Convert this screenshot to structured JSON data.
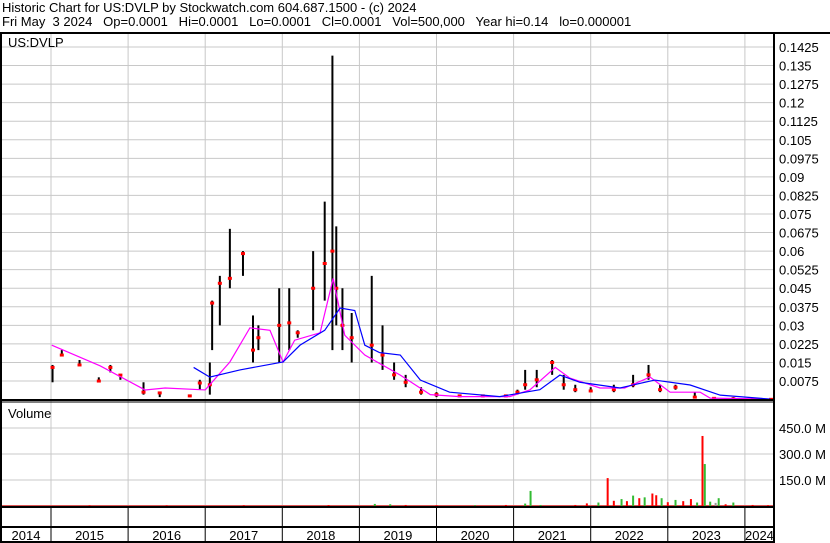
{
  "header": {
    "line1": "Historic Chart for US:DVLP by Stockwatch.com 604.687.1500 - (c) 2024",
    "line2": "Fri May  3 2024   Op=0.0001   Hi=0.0001   Lo=0.0001   Cl=0.0001   Vol=500,000   Year hi=0.14   lo=0.000001"
  },
  "chart_data": [
    {
      "type": "line",
      "title": "US:DVLP",
      "x_unit": "year",
      "xlim": [
        2013.4,
        2024.37
      ],
      "ylim": [
        0,
        0.1485
      ],
      "grid": true,
      "y_ticks": [
        "0.1425",
        "0.135",
        "0.1275",
        "0.12",
        "0.1125",
        "0.105",
        "0.0975",
        "0.09",
        "0.0825",
        "0.075",
        "0.0675",
        "0.06",
        "0.0525",
        "0.045",
        "0.0375",
        "0.03",
        "0.0225",
        "0.015",
        "0.0075"
      ],
      "colors": {
        "bar": "#000000",
        "close": "#ff0000",
        "ma_short": "#ff00ff",
        "ma_long": "#0000ff"
      },
      "bars_low_high_close": [
        [
          2013.45,
          0.026,
          0.03,
          0.026
        ],
        [
          2013.55,
          0.026,
          0.028,
          0.026
        ],
        [
          2013.7,
          0.025,
          0.029,
          0.025
        ],
        [
          2013.8,
          0.011,
          0.015,
          0.014
        ],
        [
          2014.0,
          0.006,
          0.014,
          0.007
        ],
        [
          2015.02,
          0.007,
          0.014,
          0.013
        ],
        [
          2015.14,
          0.018,
          0.02,
          0.018
        ],
        [
          2015.37,
          0.014,
          0.016,
          0.014
        ],
        [
          2015.62,
          0.007,
          0.009,
          0.0075
        ],
        [
          2015.77,
          0.011,
          0.014,
          0.013
        ],
        [
          2015.9,
          0.008,
          0.01,
          0.0099
        ],
        [
          2016.2,
          0.002,
          0.007,
          0.003
        ],
        [
          2016.41,
          0.001,
          0.003,
          0.0027
        ],
        [
          2016.8,
          0.001,
          0.002,
          0.0015
        ],
        [
          2016.93,
          0.004,
          0.008,
          0.0067
        ],
        [
          2017.06,
          0.002,
          0.015,
          0.006
        ],
        [
          2017.09,
          0.02,
          0.04,
          0.039
        ],
        [
          2017.19,
          0.03,
          0.05,
          0.047
        ],
        [
          2017.32,
          0.045,
          0.069,
          0.049
        ],
        [
          2017.49,
          0.05,
          0.06,
          0.059
        ],
        [
          2017.62,
          0.015,
          0.034,
          0.02
        ],
        [
          2017.69,
          0.02,
          0.03,
          0.025
        ],
        [
          2017.96,
          0.015,
          0.045,
          0.03
        ],
        [
          2018.09,
          0.02,
          0.045,
          0.031
        ],
        [
          2018.2,
          0.025,
          0.028,
          0.027
        ],
        [
          2018.4,
          0.028,
          0.06,
          0.045
        ],
        [
          2018.55,
          0.04,
          0.08,
          0.055
        ],
        [
          2018.65,
          0.02,
          0.139,
          0.06
        ],
        [
          2018.7,
          0.03,
          0.07,
          0.045
        ],
        [
          2018.78,
          0.02,
          0.045,
          0.03
        ],
        [
          2018.9,
          0.015,
          0.035,
          0.025
        ],
        [
          2019.16,
          0.015,
          0.05,
          0.022
        ],
        [
          2019.3,
          0.012,
          0.03,
          0.018
        ],
        [
          2019.45,
          0.008,
          0.015,
          0.01
        ],
        [
          2019.6,
          0.005,
          0.01,
          0.007
        ],
        [
          2019.8,
          0.002,
          0.005,
          0.003
        ],
        [
          2020.0,
          0.001,
          0.003,
          0.002
        ],
        [
          2020.3,
          0.001,
          0.002,
          0.0015
        ],
        [
          2020.6,
          0.001,
          0.002,
          0.0015
        ],
        [
          2020.9,
          0.001,
          0.002,
          0.0015
        ],
        [
          2021.05,
          0.002,
          0.004,
          0.003
        ],
        [
          2021.15,
          0.004,
          0.012,
          0.006
        ],
        [
          2021.3,
          0.005,
          0.012,
          0.008
        ],
        [
          2021.5,
          0.01,
          0.016,
          0.015
        ],
        [
          2021.65,
          0.004,
          0.01,
          0.006
        ],
        [
          2021.8,
          0.003,
          0.006,
          0.004
        ],
        [
          2022.0,
          0.003,
          0.005,
          0.0035
        ],
        [
          2022.3,
          0.003,
          0.006,
          0.004
        ],
        [
          2022.55,
          0.005,
          0.01,
          0.006
        ],
        [
          2022.75,
          0.008,
          0.014,
          0.01
        ],
        [
          2022.9,
          0.003,
          0.006,
          0.004
        ],
        [
          2023.1,
          0.004,
          0.006,
          0.005
        ],
        [
          2023.35,
          0.0005,
          0.003,
          0.001
        ],
        [
          2023.6,
          0.0003,
          0.001,
          0.0005
        ],
        [
          2023.85,
          0.0002,
          0.001,
          0.0003
        ],
        [
          2024.1,
          0.0001,
          0.0004,
          0.0001
        ],
        [
          2024.34,
          0.0001,
          0.0001,
          0.0001
        ]
      ],
      "ma_short": [
        [
          2015.01,
          0.022
        ],
        [
          2015.64,
          0.0136
        ],
        [
          2016.22,
          0.0039
        ],
        [
          2016.48,
          0.0047
        ],
        [
          2017.0,
          0.0039
        ],
        [
          2017.32,
          0.0152
        ],
        [
          2017.58,
          0.029
        ],
        [
          2017.84,
          0.028
        ],
        [
          2018.01,
          0.0152
        ],
        [
          2018.16,
          0.024
        ],
        [
          2018.49,
          0.027
        ],
        [
          2018.66,
          0.049
        ],
        [
          2018.81,
          0.026
        ],
        [
          2019.07,
          0.018
        ],
        [
          2019.53,
          0.0099
        ],
        [
          2019.92,
          0.002
        ],
        [
          2020.3,
          0.0012
        ],
        [
          2020.95,
          0.0012
        ],
        [
          2021.21,
          0.0039
        ],
        [
          2021.54,
          0.013
        ],
        [
          2021.73,
          0.0087
        ],
        [
          2022.12,
          0.0047
        ],
        [
          2022.44,
          0.0047
        ],
        [
          2022.77,
          0.0091
        ],
        [
          2023.03,
          0.003
        ],
        [
          2023.42,
          0.003
        ],
        [
          2023.55,
          0.0006
        ],
        [
          2024.33,
          0.0002
        ]
      ],
      "ma_long": [
        [
          2016.85,
          0.013
        ],
        [
          2017.06,
          0.0091
        ],
        [
          2017.45,
          0.012
        ],
        [
          2018.01,
          0.0152
        ],
        [
          2018.23,
          0.022
        ],
        [
          2018.55,
          0.028
        ],
        [
          2018.75,
          0.037
        ],
        [
          2018.94,
          0.036
        ],
        [
          2019.07,
          0.022
        ],
        [
          2019.26,
          0.019
        ],
        [
          2019.53,
          0.018
        ],
        [
          2019.79,
          0.0079
        ],
        [
          2020.17,
          0.003
        ],
        [
          2020.82,
          0.0012
        ],
        [
          2021.34,
          0.004
        ],
        [
          2021.6,
          0.0099
        ],
        [
          2021.86,
          0.007
        ],
        [
          2022.38,
          0.0047
        ],
        [
          2022.83,
          0.0079
        ],
        [
          2023.29,
          0.0059
        ],
        [
          2023.68,
          0.0018
        ],
        [
          2024.33,
          0.0002
        ]
      ]
    },
    {
      "type": "bar",
      "title": "Volume",
      "ylim": [
        0,
        550
      ],
      "y_unit": "M",
      "y_ticks": [
        "450.0 M",
        "300.0 M",
        "150.0 M"
      ],
      "colors": {
        "up": "#33bb33",
        "down": "#ff0000",
        "flat": "#999999"
      },
      "volume_bars": [
        [
          2014.2,
          3,
          "down"
        ],
        [
          2015.5,
          3,
          "down"
        ],
        [
          2016.5,
          3,
          "down"
        ],
        [
          2017.5,
          4,
          "down"
        ],
        [
          2018.6,
          5,
          "down"
        ],
        [
          2019.2,
          12,
          "up"
        ],
        [
          2019.4,
          10,
          "up"
        ],
        [
          2019.6,
          6,
          "down"
        ],
        [
          2020.0,
          4,
          "down"
        ],
        [
          2020.5,
          4,
          "up"
        ],
        [
          2020.9,
          6,
          "down"
        ],
        [
          2021.15,
          14,
          "up"
        ],
        [
          2021.22,
          87,
          "up"
        ],
        [
          2021.35,
          6,
          "up"
        ],
        [
          2021.8,
          6,
          "down"
        ],
        [
          2021.95,
          15,
          "down"
        ],
        [
          2022.1,
          20,
          "up"
        ],
        [
          2022.22,
          161,
          "down"
        ],
        [
          2022.3,
          30,
          "down"
        ],
        [
          2022.4,
          40,
          "up"
        ],
        [
          2022.47,
          28,
          "down"
        ],
        [
          2022.55,
          60,
          "up"
        ],
        [
          2022.63,
          45,
          "down"
        ],
        [
          2022.7,
          50,
          "up"
        ],
        [
          2022.8,
          72,
          "down"
        ],
        [
          2022.85,
          62,
          "down"
        ],
        [
          2022.92,
          45,
          "up"
        ],
        [
          2023.0,
          22,
          "down"
        ],
        [
          2023.1,
          35,
          "up"
        ],
        [
          2023.2,
          28,
          "down"
        ],
        [
          2023.3,
          40,
          "down"
        ],
        [
          2023.38,
          20,
          "up"
        ],
        [
          2023.45,
          404,
          "down"
        ],
        [
          2023.48,
          242,
          "up"
        ],
        [
          2023.55,
          25,
          "up"
        ],
        [
          2023.62,
          18,
          "flat"
        ],
        [
          2023.66,
          45,
          "up"
        ],
        [
          2023.75,
          10,
          "down"
        ],
        [
          2023.85,
          20,
          "up"
        ],
        [
          2024.1,
          6,
          "down"
        ],
        [
          2024.3,
          4,
          "down"
        ]
      ]
    }
  ],
  "x_axis": {
    "labels": [
      "2014",
      "2015",
      "2016",
      "2017",
      "2018",
      "2019",
      "2020",
      "2021",
      "2022",
      "2023",
      "2024"
    ]
  }
}
